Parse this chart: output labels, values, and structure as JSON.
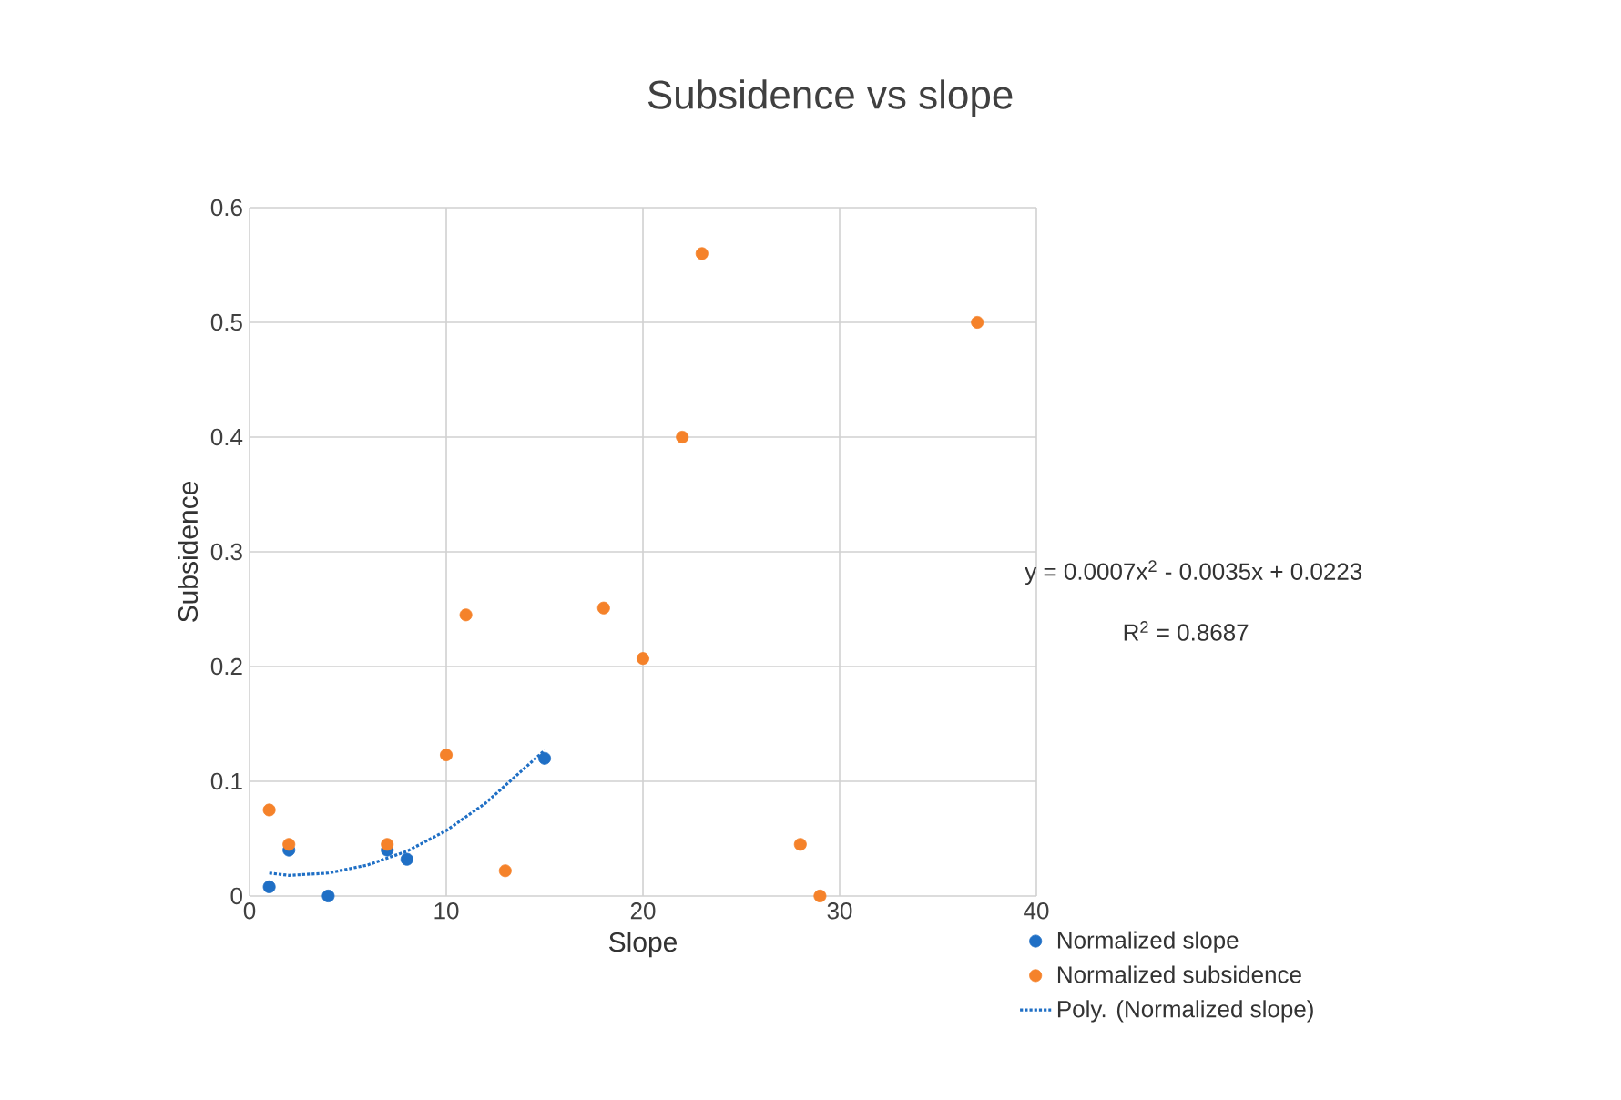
{
  "chart_data": {
    "type": "scatter",
    "title": "Subsidence vs slope",
    "xlabel": "Slope",
    "ylabel": "Subsidence",
    "xlim": [
      0,
      40
    ],
    "ylim": [
      0,
      0.6
    ],
    "xticks": [
      0,
      10,
      20,
      30,
      40
    ],
    "yticks": [
      0,
      0.1,
      0.2,
      0.3,
      0.4,
      0.5,
      0.6
    ],
    "grid": true,
    "legend": "bottom right",
    "marker": "circle",
    "series": [
      {
        "name": "Normalized slope",
        "color": "#1f6fc5",
        "x": [
          1,
          2,
          4,
          7,
          8,
          15
        ],
        "values": [
          0.008,
          0.04,
          0,
          0.04,
          0.032,
          0.12
        ]
      },
      {
        "name": "Normalized subsidence",
        "color": "#f5822a",
        "x": [
          1,
          2,
          7,
          10,
          11,
          13,
          18,
          20,
          22,
          23,
          28,
          29,
          37
        ],
        "values": [
          0.075,
          0.045,
          0.045,
          0.123,
          0.245,
          0.022,
          0.251,
          0.207,
          0.4,
          0.56,
          0.045,
          0,
          0.5
        ]
      },
      {
        "name": "Poly. (Normalized slope)",
        "type": "line",
        "marker": "none",
        "line_style": "dotted",
        "color": "#1f6fc5",
        "x": [
          1,
          2,
          4,
          6,
          8,
          10,
          12,
          15
        ],
        "values": [
          0.02,
          0.018,
          0.02,
          0.027,
          0.039,
          0.057,
          0.081,
          0.127
        ]
      }
    ],
    "annotations": [
      "y = 0.0007x$^{2}$ - 0.0035x + 0.0223",
      "R$^{2}$ = 0.8687"
    ]
  }
}
